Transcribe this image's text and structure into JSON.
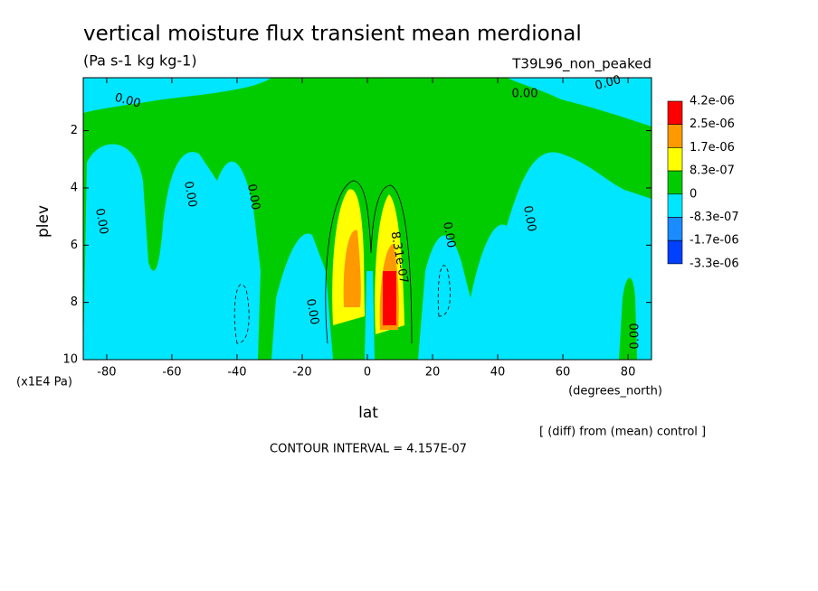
{
  "chart_data": {
    "type": "contour",
    "title": "vertical moisture flux transient mean merdional",
    "subtitle": "(Pa s-1 kg kg-1)",
    "dataset_label": "T39L96_non_peaked",
    "x_label": "lat",
    "x_units": "(degrees_north)",
    "y_label": "plev",
    "y_units": "(x1E4 Pa)",
    "xlim": [
      -87.2,
      87.2
    ],
    "xticks": [
      -80,
      -60,
      -40,
      -20,
      0,
      20,
      40,
      60,
      80
    ],
    "ylim": [
      10,
      0.15
    ],
    "yticks": [
      2,
      4,
      6,
      8,
      10
    ],
    "contour_labels": [
      "0.00",
      "8.31e-07"
    ],
    "colorbar": {
      "levels": [
        {
          "value": 4.2e-06,
          "label": "4.2e-06"
        },
        {
          "value": 2.5e-06,
          "label": "2.5e-06"
        },
        {
          "value": 1.7e-06,
          "label": "1.7e-06"
        },
        {
          "value": 8.3e-07,
          "label": "8.3e-07"
        },
        0,
        {
          "value": -8.3e-07,
          "label": "-8.3e-07"
        },
        {
          "value": -1.7e-06,
          "label": "-1.7e-06"
        },
        {
          "value": -3.3e-06,
          "label": "-3.3e-06"
        }
      ],
      "colors": [
        "#ff0000",
        "#ff9900",
        "#ffff00",
        "#00cc00",
        "#00e6ff",
        "#1a8cff",
        "#0040ff"
      ]
    },
    "annotations": [
      "[ (diff) from (mean) control ]",
      "CONTOUR INTERVAL = 4.157E-07"
    ]
  }
}
